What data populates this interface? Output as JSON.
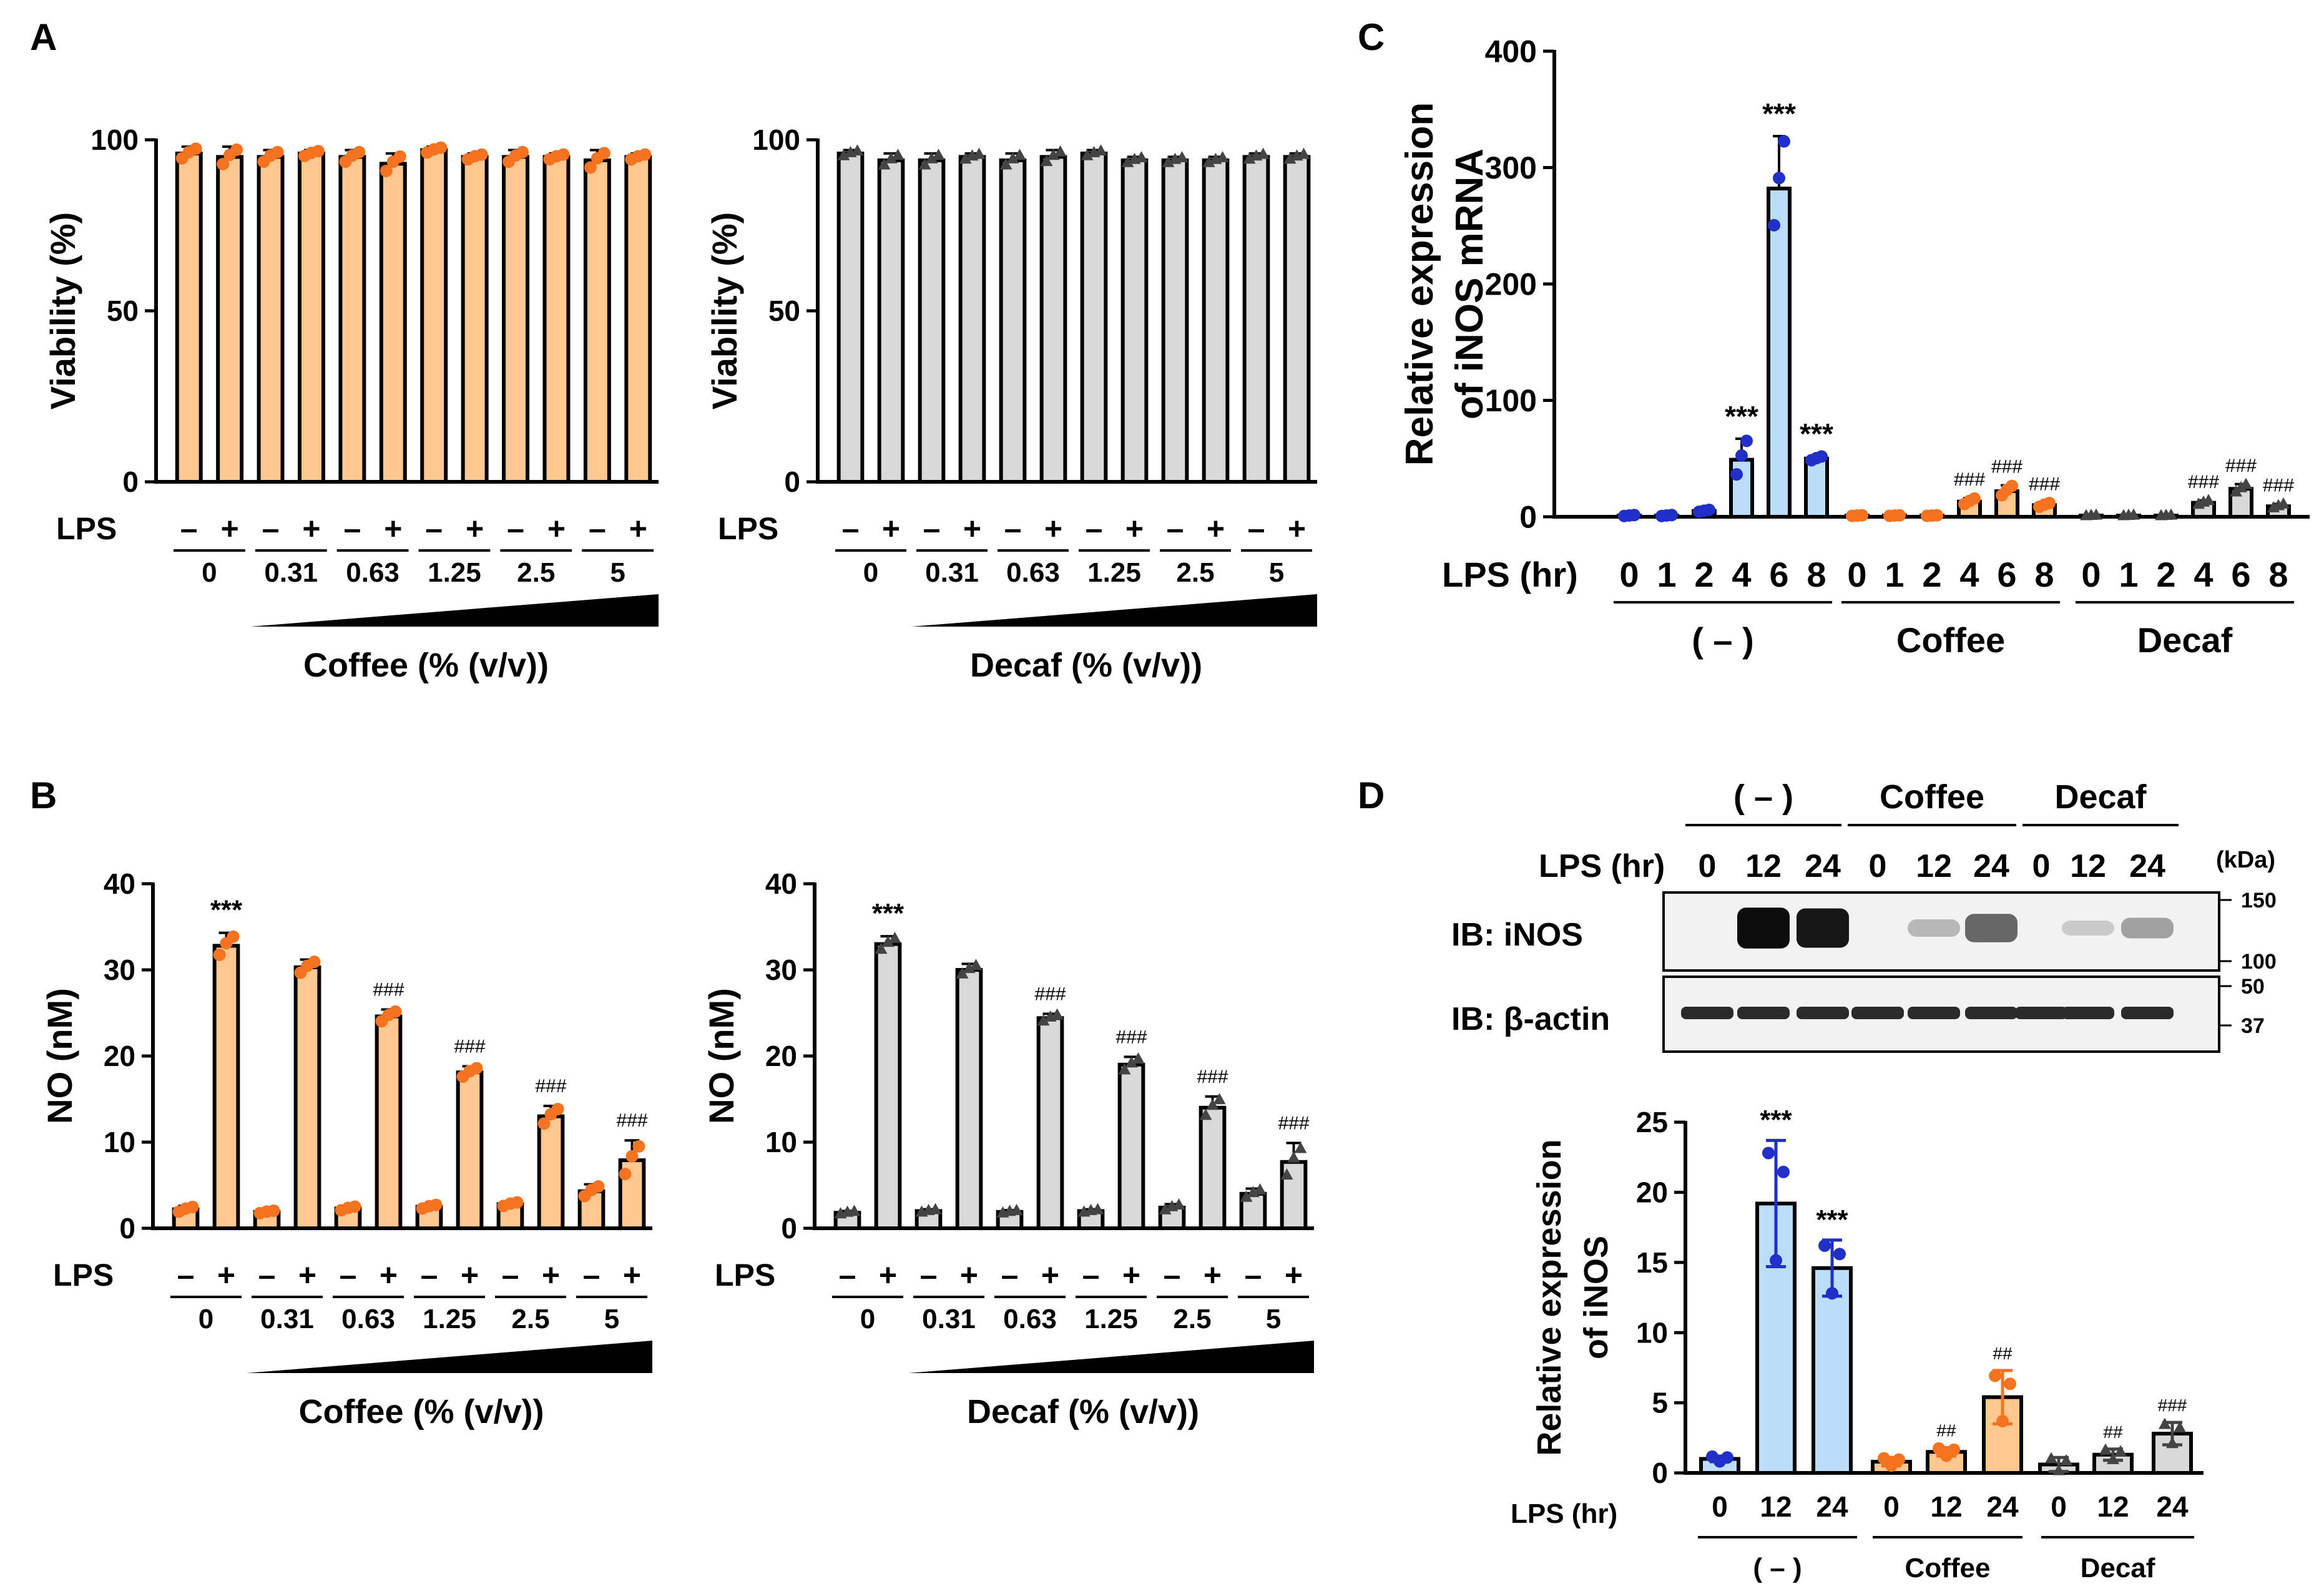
{
  "panel_letters": {
    "a": "A",
    "b": "B",
    "c": "C",
    "d": "D"
  },
  "colors": {
    "coffee": "#FFC891",
    "coffee_pt": "#F5731F",
    "decaf": "#D9D9D9",
    "decaf_pt": "#444444",
    "control": "#BCDDF7",
    "control_pt": "#1F2FC7",
    "black": "#000000"
  },
  "labels": {
    "lps": "LPS",
    "lps_hr": "LPS (hr)",
    "minus": "–",
    "plus": "+",
    "ctrl_group": "( – )",
    "coffee_group": "Coffee",
    "decaf_group": "Decaf",
    "stars": "***",
    "h3": "###",
    "h2": "##"
  },
  "panelA": {
    "coffee": {
      "ylabel": "Viability (%)",
      "xtitle": "Coffee (% (v/v))",
      "yticks": [
        0,
        50,
        100
      ],
      "ylim": [
        0,
        100
      ],
      "doses": [
        "0",
        "0.31",
        "0.63",
        "1.25",
        "2.5",
        "5"
      ],
      "values": [
        96,
        95,
        95,
        96,
        95,
        93,
        97,
        95,
        95,
        95,
        94,
        95
      ],
      "errors": [
        2,
        3,
        2,
        1,
        2,
        3,
        1,
        1,
        2,
        1,
        3,
        1
      ]
    },
    "decaf": {
      "ylabel": "Viability (%)",
      "xtitle": "Decaf (% (v/v))",
      "yticks": [
        0,
        50,
        100
      ],
      "ylim": [
        0,
        100
      ],
      "doses": [
        "0",
        "0.31",
        "0.63",
        "1.25",
        "2.5",
        "5"
      ],
      "values": [
        96,
        94,
        94,
        95,
        94,
        95,
        96,
        94,
        94,
        94,
        95,
        95
      ],
      "errors": [
        1,
        2,
        2,
        1,
        2,
        2,
        1,
        1,
        1,
        1,
        1,
        1
      ]
    }
  },
  "panelB": {
    "coffee": {
      "ylabel": "NO (nM)",
      "xtitle": "Coffee (% (v/v))",
      "yticks": [
        0,
        10,
        20,
        30,
        40
      ],
      "ylim": [
        0,
        40
      ],
      "doses": [
        "0",
        "0.31",
        "0.63",
        "1.25",
        "2.5",
        "5"
      ],
      "values": [
        2.2,
        32.8,
        1.9,
        30.3,
        2.3,
        24.6,
        2.5,
        18.1,
        2.8,
        13.0,
        4.3,
        7.9
      ],
      "errors": [
        0.4,
        1.5,
        0.2,
        0.9,
        0.3,
        0.8,
        0.3,
        0.7,
        0.3,
        1.2,
        0.8,
        2.3
      ],
      "marks": [
        "",
        "***",
        "",
        "",
        "",
        "###",
        "",
        "###",
        "",
        "###",
        "",
        "###"
      ]
    },
    "decaf": {
      "ylabel": "NO (nM)",
      "xtitle": "Decaf (% (v/v))",
      "yticks": [
        0,
        10,
        20,
        30,
        40
      ],
      "ylim": [
        0,
        40
      ],
      "doses": [
        "0",
        "0.31",
        "0.63",
        "1.25",
        "2.5",
        "5"
      ],
      "values": [
        1.8,
        33.0,
        2.0,
        30.0,
        1.9,
        24.4,
        2.0,
        19.0,
        2.4,
        14.0,
        4.0,
        7.7
      ],
      "errors": [
        0.2,
        0.9,
        0.2,
        0.7,
        0.2,
        0.5,
        0.2,
        0.9,
        0.4,
        1.3,
        0.6,
        2.2
      ],
      "marks": [
        "",
        "***",
        "",
        "",
        "",
        "###",
        "",
        "###",
        "",
        "###",
        "",
        "###"
      ]
    }
  },
  "panelC": {
    "ylabel1": "Relative expression",
    "ylabel2": "of iNOS mRNA",
    "yticks": [
      0,
      100,
      200,
      300,
      400
    ],
    "ylim": [
      0,
      400
    ],
    "hours": [
      "0",
      "1",
      "2",
      "4",
      "6",
      "8"
    ],
    "control": {
      "values": [
        1,
        1,
        5,
        49,
        282,
        50
      ],
      "errors": [
        0.5,
        0.5,
        1,
        18,
        45,
        2
      ],
      "marks": [
        "",
        "",
        "",
        "***",
        "***",
        "***"
      ]
    },
    "coffee": {
      "values": [
        1,
        1,
        1,
        13,
        22,
        10
      ],
      "errors": [
        0.3,
        0.3,
        0.3,
        3,
        5,
        2
      ],
      "marks": [
        "",
        "",
        "",
        "###",
        "###",
        "###"
      ]
    },
    "decaf": {
      "values": [
        1,
        1,
        1,
        12,
        24,
        9
      ],
      "errors": [
        0.3,
        0.3,
        0.3,
        2,
        4,
        2
      ],
      "marks": [
        "",
        "",
        "",
        "###",
        "###",
        "###"
      ]
    }
  },
  "panelD": {
    "blot": {
      "hours": [
        "0",
        "12",
        "24",
        "0",
        "12",
        "24",
        "0",
        "12",
        "24"
      ],
      "kda": "(kDa)",
      "ib_inos": "IB: iNOS",
      "ib_actin": "IB: β-actin",
      "markers_top": [
        "150",
        "100"
      ],
      "markers_bottom": [
        "50",
        "37"
      ],
      "inos_intensity": [
        0,
        0.95,
        0.9,
        0,
        0.2,
        0.55,
        0,
        0.12,
        0.3
      ]
    },
    "chart": {
      "ylabel1": "Relative expression",
      "ylabel2": "of iNOS",
      "yticks": [
        0,
        5,
        10,
        15,
        20,
        25
      ],
      "ylim": [
        0,
        25
      ],
      "hours": [
        "0",
        "12",
        "24"
      ],
      "values": [
        1.0,
        19.2,
        14.6,
        0.8,
        1.5,
        5.4,
        0.6,
        1.3,
        2.8
      ],
      "errors": [
        0.2,
        4.5,
        2.0,
        0.3,
        0.3,
        1.9,
        0.5,
        0.4,
        0.8
      ],
      "marks": [
        "",
        "***",
        "***",
        "",
        "##",
        "##",
        "",
        "##",
        "###"
      ]
    }
  },
  "chart_data": [
    {
      "type": "bar",
      "title": "A",
      "ylabel": "Viability (%)",
      "xlabel": "Coffee (% (v/v))",
      "ylim": [
        0,
        100
      ],
      "categories": [
        "0 -",
        "0 +",
        "0.31 -",
        "0.31 +",
        "0.63 -",
        "0.63 +",
        "1.25 -",
        "1.25 +",
        "2.5 -",
        "2.5 +",
        "5 -",
        "5 +"
      ],
      "values": [
        96,
        95,
        95,
        96,
        95,
        93,
        97,
        95,
        95,
        95,
        94,
        95
      ]
    },
    {
      "type": "bar",
      "title": "A",
      "ylabel": "Viability (%)",
      "xlabel": "Decaf (% (v/v))",
      "ylim": [
        0,
        100
      ],
      "categories": [
        "0 -",
        "0 +",
        "0.31 -",
        "0.31 +",
        "0.63 -",
        "0.63 +",
        "1.25 -",
        "1.25 +",
        "2.5 -",
        "2.5 +",
        "5 -",
        "5 +"
      ],
      "values": [
        96,
        94,
        94,
        95,
        94,
        95,
        96,
        94,
        94,
        94,
        95,
        95
      ]
    },
    {
      "type": "bar",
      "title": "B",
      "ylabel": "NO (nM)",
      "xlabel": "Coffee (% (v/v))",
      "ylim": [
        0,
        40
      ],
      "categories": [
        "0 -",
        "0 +",
        "0.31 -",
        "0.31 +",
        "0.63 -",
        "0.63 +",
        "1.25 -",
        "1.25 +",
        "2.5 -",
        "2.5 +",
        "5 -",
        "5 +"
      ],
      "values": [
        2.2,
        32.8,
        1.9,
        30.3,
        2.3,
        24.6,
        2.5,
        18.1,
        2.8,
        13.0,
        4.3,
        7.9
      ]
    },
    {
      "type": "bar",
      "title": "B",
      "ylabel": "NO (nM)",
      "xlabel": "Decaf (% (v/v))",
      "ylim": [
        0,
        40
      ],
      "categories": [
        "0 -",
        "0 +",
        "0.31 -",
        "0.31 +",
        "0.63 -",
        "0.63 +",
        "1.25 -",
        "1.25 +",
        "2.5 -",
        "2.5 +",
        "5 -",
        "5 +"
      ],
      "values": [
        1.8,
        33.0,
        2.0,
        30.0,
        1.9,
        24.4,
        2.0,
        19.0,
        2.4,
        14.0,
        4.0,
        7.7
      ]
    },
    {
      "type": "bar",
      "title": "C",
      "ylabel": "Relative expression of iNOS mRNA",
      "xlabel": "LPS (hr)",
      "ylim": [
        0,
        400
      ],
      "categories": [
        "0",
        "1",
        "2",
        "4",
        "6",
        "8"
      ],
      "series": [
        {
          "name": "( - )",
          "values": [
            1,
            1,
            5,
            49,
            282,
            50
          ]
        },
        {
          "name": "Coffee",
          "values": [
            1,
            1,
            1,
            13,
            22,
            10
          ]
        },
        {
          "name": "Decaf",
          "values": [
            1,
            1,
            1,
            12,
            24,
            9
          ]
        }
      ]
    },
    {
      "type": "bar",
      "title": "D",
      "ylabel": "Relative expression of iNOS",
      "xlabel": "LPS (hr)",
      "ylim": [
        0,
        25
      ],
      "categories": [
        "0",
        "12",
        "24"
      ],
      "series": [
        {
          "name": "( - )",
          "values": [
            1.0,
            19.2,
            14.6
          ]
        },
        {
          "name": "Coffee",
          "values": [
            0.8,
            1.5,
            5.4
          ]
        },
        {
          "name": "Decaf",
          "values": [
            0.6,
            1.3,
            2.8
          ]
        }
      ]
    }
  ]
}
